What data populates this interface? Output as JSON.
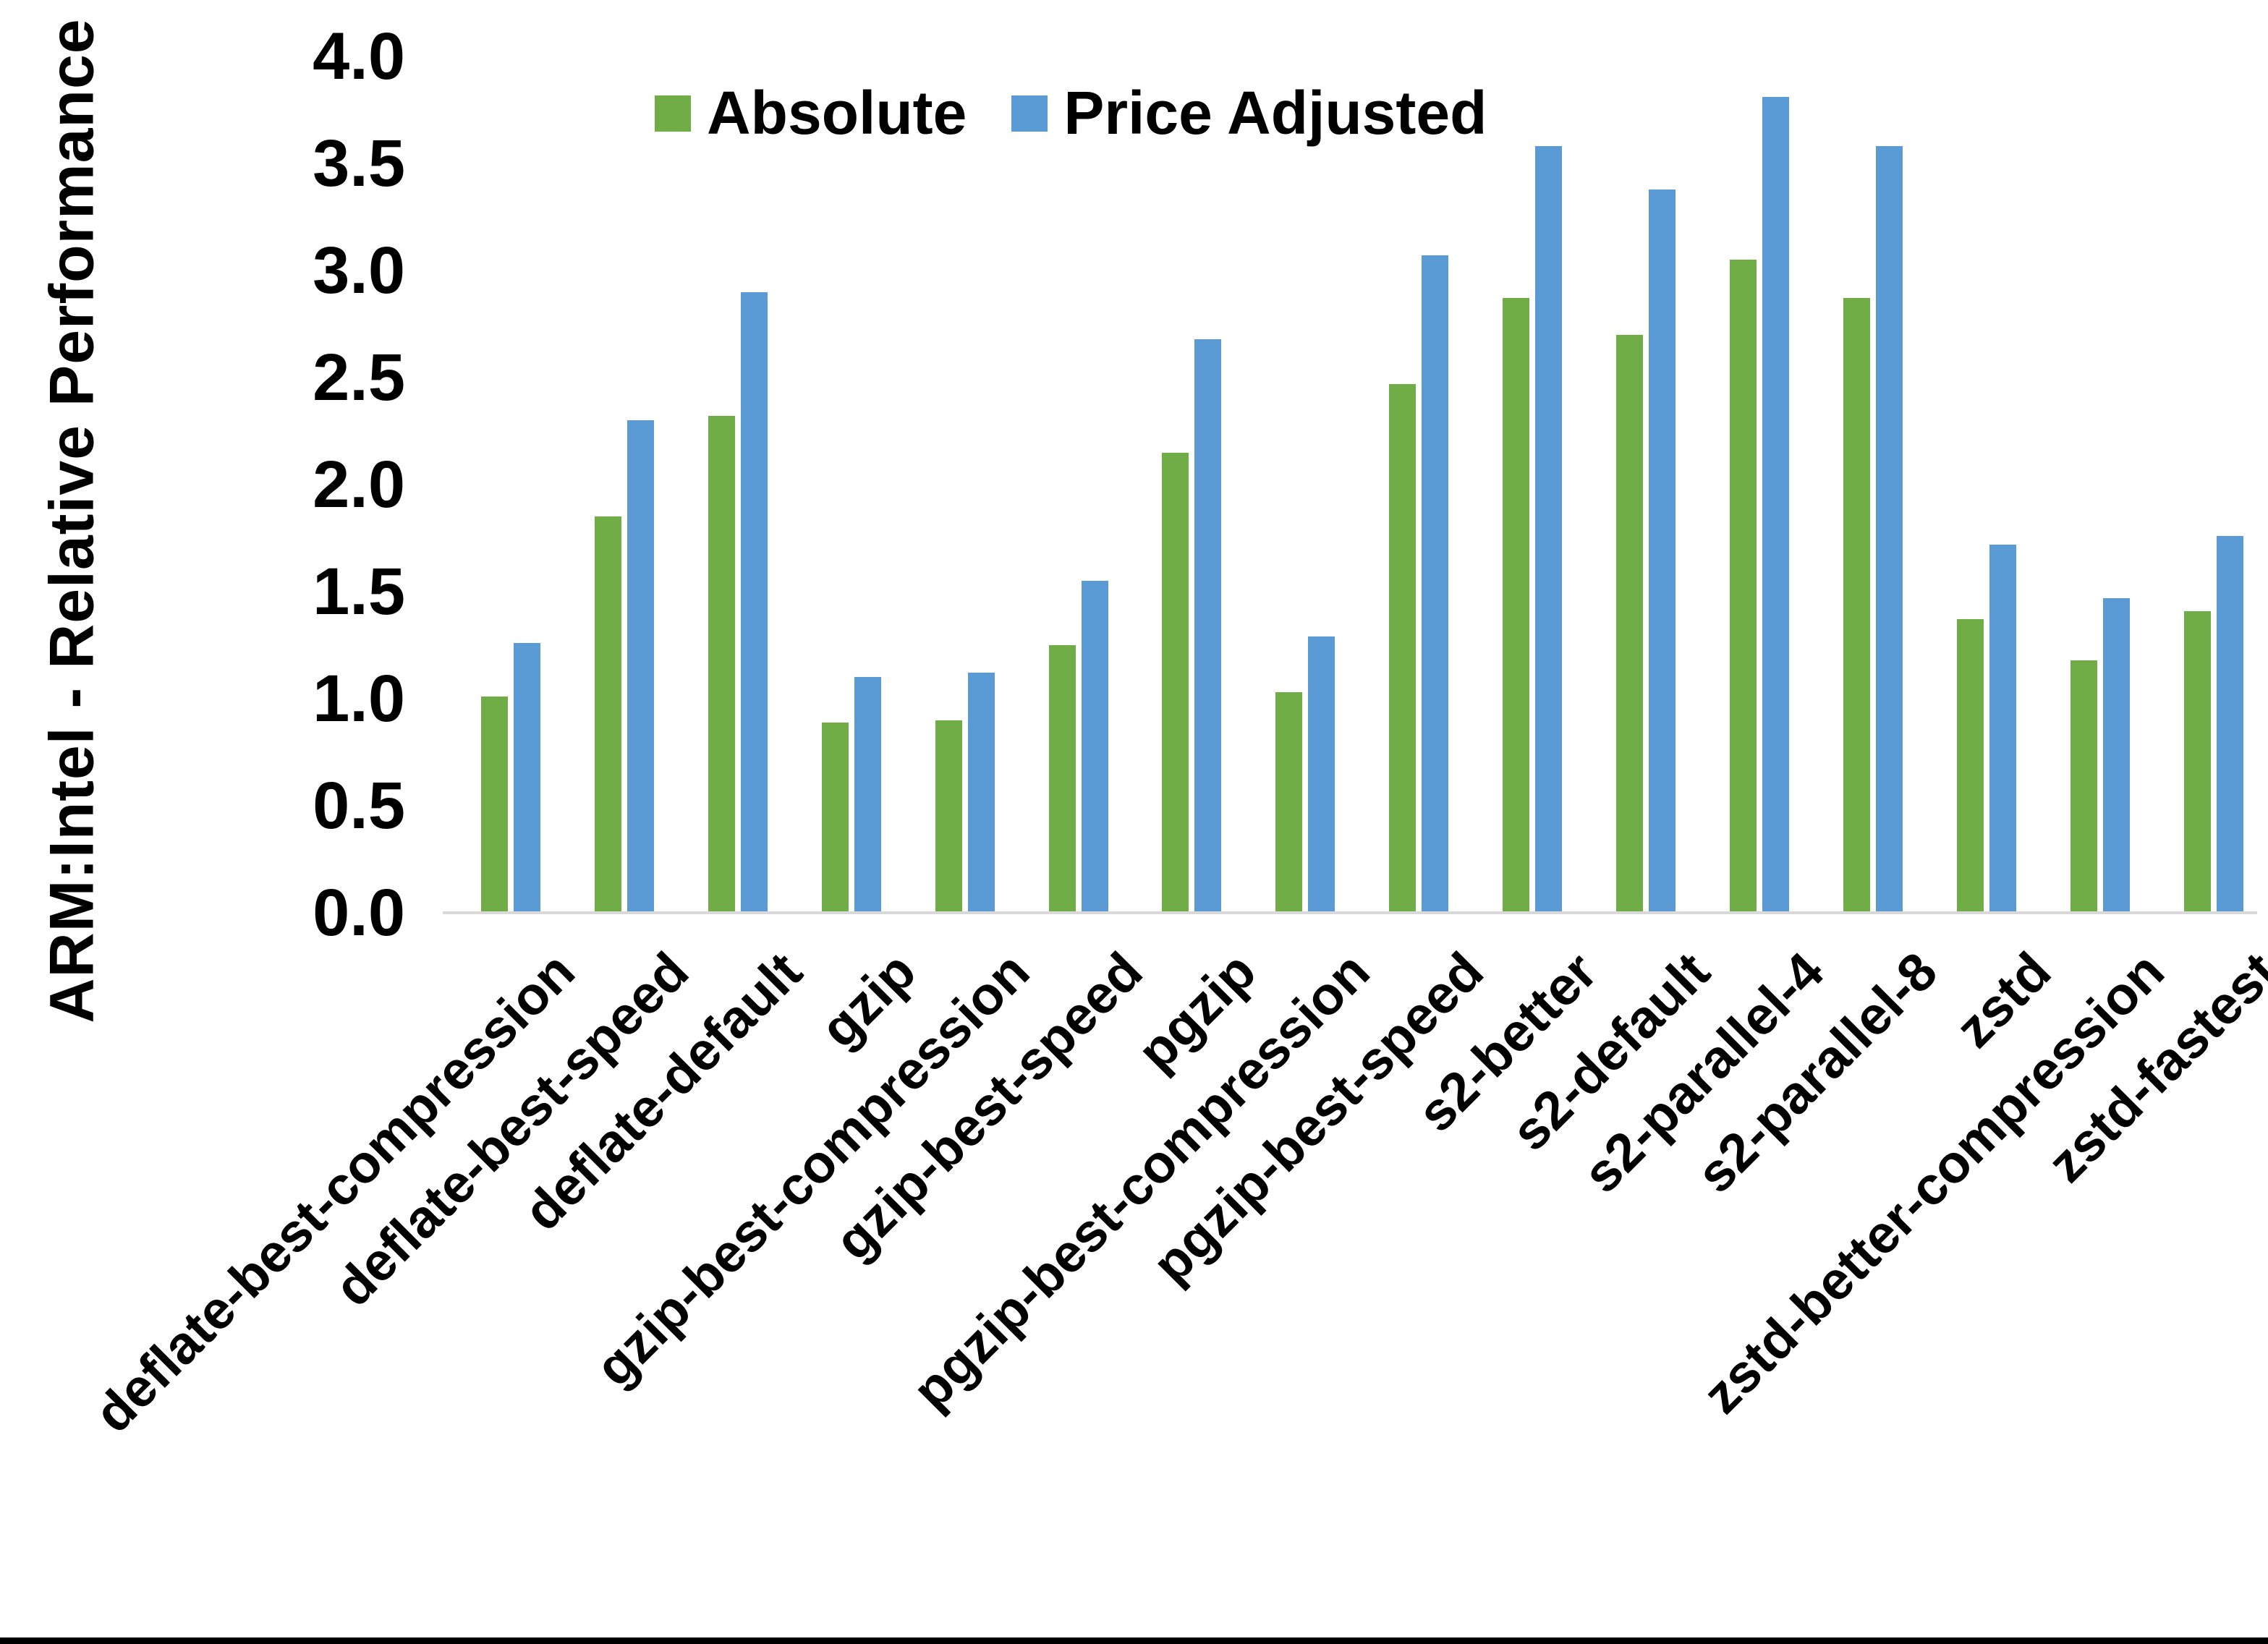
{
  "chart_data": {
    "type": "bar",
    "title": "",
    "xlabel": "",
    "ylabel": "ARM:Intel - Relative Performance",
    "ylim": [
      0.0,
      4.0
    ],
    "ytick_step": 0.5,
    "ytick_labels": [
      "0.0",
      "0.5",
      "1.0",
      "1.5",
      "2.0",
      "2.5",
      "3.0",
      "3.5",
      "4.0"
    ],
    "grid": false,
    "legend_position": "top-center",
    "categories": [
      "deflate-best-compression",
      "deflate-best-speed",
      "deflate-default",
      "gzip",
      "gzip-best-compression",
      "gzip-best-speed",
      "pgzip",
      "pgzip-best-compression",
      "pgzip-best-speed",
      "s2-better",
      "s2-default",
      "s2-parallel-4",
      "s2-parallel-8",
      "zstd",
      "zstd-better-compression",
      "zstd-fastest"
    ],
    "series": [
      {
        "name": "Absolute",
        "color": "#70AD47",
        "values": [
          1.01,
          1.85,
          2.32,
          0.89,
          0.9,
          1.25,
          2.15,
          1.03,
          2.47,
          2.87,
          2.7,
          3.05,
          2.87,
          1.37,
          1.18,
          1.41
        ]
      },
      {
        "name": "Price Adjusted",
        "color": "#5B9BD5",
        "values": [
          1.26,
          2.3,
          2.9,
          1.1,
          1.12,
          1.55,
          2.68,
          1.29,
          3.07,
          3.58,
          3.38,
          3.81,
          3.58,
          1.72,
          1.47,
          1.76
        ]
      }
    ]
  },
  "colors": {
    "background": "#FFFFFF",
    "text": "#000000",
    "axis_line": "#D9D9D9",
    "bottom_border": "#000000"
  }
}
